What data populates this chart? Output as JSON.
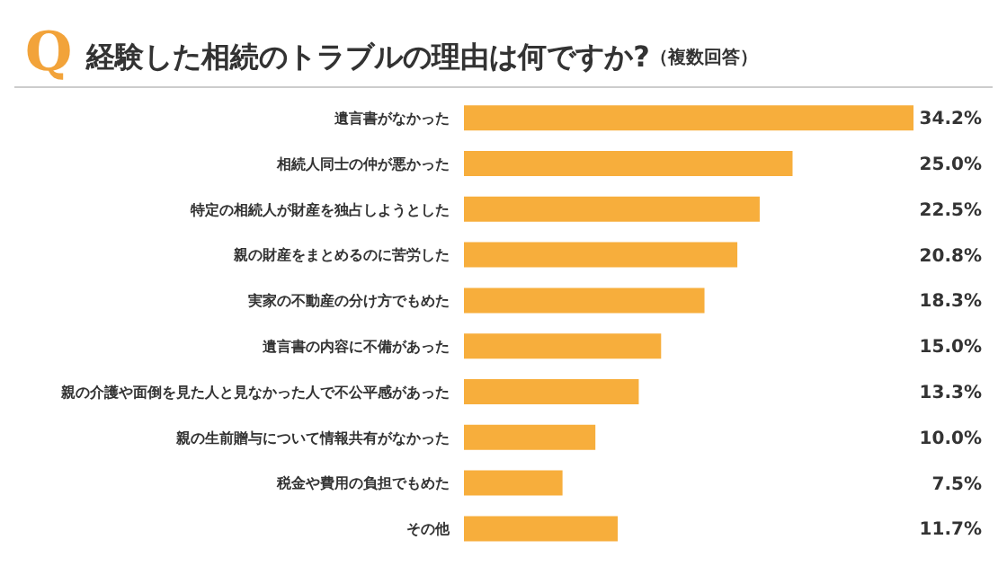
{
  "chart_data": {
    "type": "bar",
    "orientation": "horizontal",
    "title": "経験した相続のトラブルの理由は何ですか?",
    "subtitle": "（複数回答）",
    "annotations": [
      "Q"
    ],
    "categories": [
      "遺言書がなかった",
      "相続人同士の仲が悪かった",
      "特定の相続人が財産を独占しようとした",
      "親の財産をまとめるのに苦労した",
      "実家の不動産の分け方でもめた",
      "遺言書の内容に不備があった",
      "親の介護や面倒を見た人と見なかった人で不公平感があった",
      "親の生前贈与について情報共有がなかった",
      "税金や費用の負担でもめた",
      "その他"
    ],
    "values": [
      34.2,
      25.0,
      22.5,
      20.8,
      18.3,
      15.0,
      13.3,
      10.0,
      7.5,
      11.7
    ],
    "value_labels": [
      "34.2%",
      "25.0%",
      "22.5%",
      "20.8%",
      "18.3%",
      "15.0%",
      "13.3%",
      "10.0%",
      "7.5%",
      "11.7%"
    ],
    "color": "#f7ae3c",
    "legend": false,
    "grid": false
  }
}
